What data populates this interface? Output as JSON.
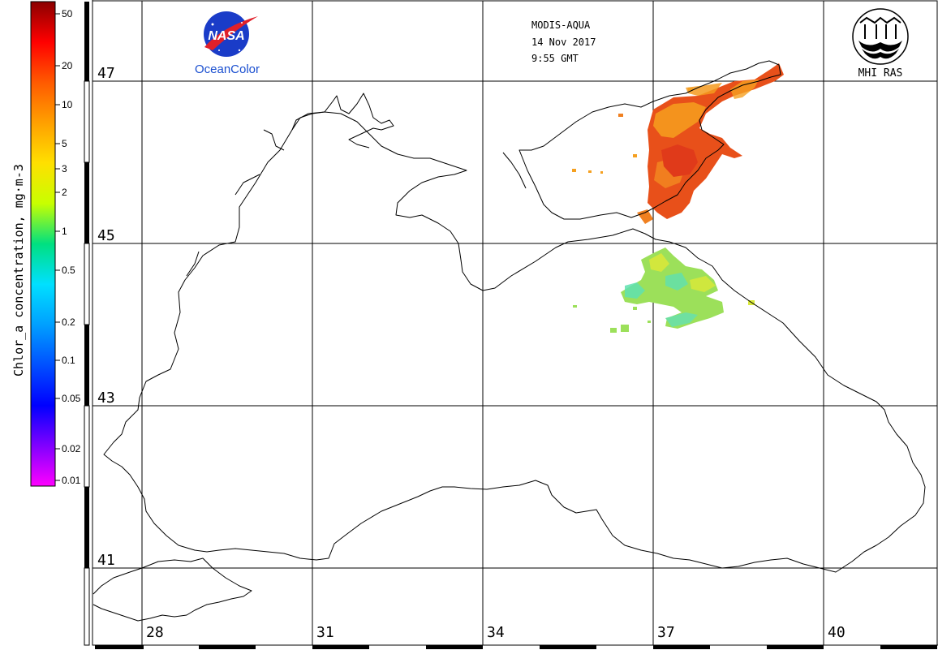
{
  "colorbar": {
    "title": "Chlor_a concentration, mg·m-3",
    "ticks": [
      "50",
      "20",
      "10",
      "5",
      "3",
      "2",
      "1",
      "0.5",
      "0.2",
      "0.1",
      "0.05",
      "0.02",
      "0.01"
    ],
    "gradient_colors": [
      "#8b0000",
      "#ff0000",
      "#ff5a00",
      "#ffa000",
      "#ffe000",
      "#c8ff00",
      "#00e080",
      "#00e0ff",
      "#00a0ff",
      "#0050ff",
      "#0000ff",
      "#8000ff",
      "#ff00ff"
    ]
  },
  "header": {
    "sensor": "MODIS-AQUA",
    "date": "14 Nov 2017",
    "time": "9:55 GMT"
  },
  "logos": {
    "nasa_text": "NASA",
    "oceancolor": "OceanColor",
    "mhi": "MHI RAS"
  },
  "latitudes": [
    "47",
    "45",
    "43",
    "41"
  ],
  "longitudes": [
    "28",
    "31",
    "34",
    "37",
    "40"
  ],
  "colors": {
    "high_chl": "#e8501a",
    "mid_chl": "#f59a1e",
    "low_chl": "#9ce05a",
    "nasa_blue": "#1a3cc8",
    "nasa_red": "#e0202a",
    "oceancolor_blue": "#1a4fd0"
  }
}
